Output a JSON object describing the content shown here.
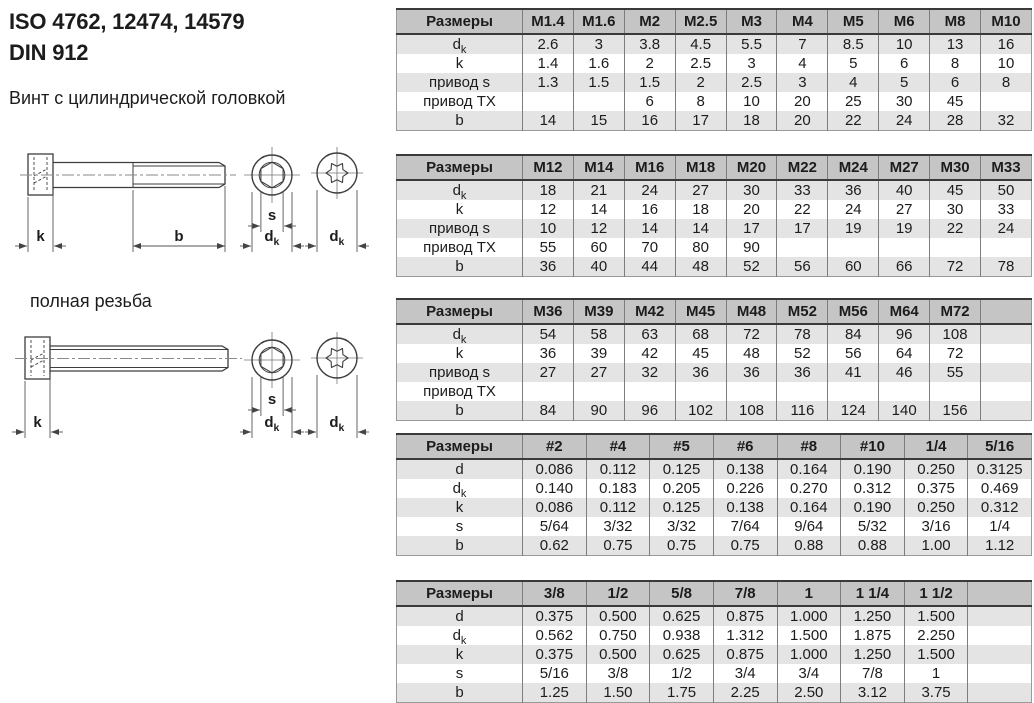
{
  "page": {
    "title_iso": "ISO 4762, 12474, 14579",
    "title_din": "DIN 912",
    "subtitle": "Винт с цилиндрической головкой",
    "full_thread_note": "полная резьба"
  },
  "drawing_labels": {
    "k": "k",
    "b": "b",
    "s": "s",
    "d": "d",
    "dk_sub": "k"
  },
  "colors": {
    "table_header_bg": "#c5c5c5",
    "table_stripe_bg": "#e4e4e4",
    "table_border_dark": "#3a3a3a",
    "table_grid": "#7d7d7d",
    "drawing_line": "#3d3d3d",
    "text": "#1c1c1c"
  },
  "tables": [
    {
      "name": "dimensions-table-m1_4-m10",
      "header": [
        "Размеры",
        "M1.4",
        "M1.6",
        "M2",
        "M2.5",
        "M3",
        "M4",
        "M5",
        "M6",
        "M8",
        "M10"
      ],
      "rows": [
        {
          "label": "d",
          "sub": "k",
          "values": [
            "2.6",
            "3",
            "3.8",
            "4.5",
            "5.5",
            "7",
            "8.5",
            "10",
            "13",
            "16"
          ]
        },
        {
          "label": "k",
          "values": [
            "1.4",
            "1.6",
            "2",
            "2.5",
            "3",
            "4",
            "5",
            "6",
            "8",
            "10"
          ]
        },
        {
          "label": "привод s",
          "values": [
            "1.3",
            "1.5",
            "1.5",
            "2",
            "2.5",
            "3",
            "4",
            "5",
            "6",
            "8"
          ]
        },
        {
          "label": "привод TX",
          "values": [
            "",
            "",
            "6",
            "8",
            "10",
            "20",
            "25",
            "30",
            "45",
            ""
          ]
        },
        {
          "label": "b",
          "values": [
            "14",
            "15",
            "16",
            "17",
            "18",
            "20",
            "22",
            "24",
            "28",
            "32"
          ]
        }
      ]
    },
    {
      "name": "dimensions-table-m12-m33",
      "header": [
        "Размеры",
        "M12",
        "M14",
        "M16",
        "M18",
        "M20",
        "M22",
        "M24",
        "M27",
        "M30",
        "M33"
      ],
      "rows": [
        {
          "label": "d",
          "sub": "k",
          "values": [
            "18",
            "21",
            "24",
            "27",
            "30",
            "33",
            "36",
            "40",
            "45",
            "50"
          ]
        },
        {
          "label": "k",
          "values": [
            "12",
            "14",
            "16",
            "18",
            "20",
            "22",
            "24",
            "27",
            "30",
            "33"
          ]
        },
        {
          "label": "привод s",
          "values": [
            "10",
            "12",
            "14",
            "14",
            "17",
            "17",
            "19",
            "19",
            "22",
            "24"
          ]
        },
        {
          "label": "привод TX",
          "values": [
            "55",
            "60",
            "70",
            "80",
            "90",
            "",
            "",
            "",
            "",
            ""
          ]
        },
        {
          "label": "b",
          "values": [
            "36",
            "40",
            "44",
            "48",
            "52",
            "56",
            "60",
            "66",
            "72",
            "78"
          ]
        }
      ]
    },
    {
      "name": "dimensions-table-m36-m72",
      "header": [
        "Размеры",
        "M36",
        "M39",
        "M42",
        "M45",
        "M48",
        "M52",
        "M56",
        "M64",
        "M72",
        ""
      ],
      "rows": [
        {
          "label": "d",
          "sub": "k",
          "values": [
            "54",
            "58",
            "63",
            "68",
            "72",
            "78",
            "84",
            "96",
            "108",
            ""
          ]
        },
        {
          "label": "k",
          "values": [
            "36",
            "39",
            "42",
            "45",
            "48",
            "52",
            "56",
            "64",
            "72",
            ""
          ]
        },
        {
          "label": "привод s",
          "values": [
            "27",
            "27",
            "32",
            "36",
            "36",
            "36",
            "41",
            "46",
            "55",
            ""
          ]
        },
        {
          "label": "привод TX",
          "values": [
            "",
            "",
            "",
            "",
            "",
            "",
            "",
            "",
            "",
            ""
          ]
        },
        {
          "label": "b",
          "values": [
            "84",
            "90",
            "96",
            "102",
            "108",
            "116",
            "124",
            "140",
            "156",
            ""
          ]
        }
      ]
    },
    {
      "name": "dimensions-table-number-sizes",
      "header": [
        "Размеры",
        "#2",
        "#4",
        "#5",
        "#6",
        "#8",
        "#10",
        "1/4",
        "5/16"
      ],
      "rows": [
        {
          "label": "d",
          "values": [
            "0.086",
            "0.112",
            "0.125",
            "0.138",
            "0.164",
            "0.190",
            "0.250",
            "0.3125"
          ]
        },
        {
          "label": "d",
          "sub": "k",
          "values": [
            "0.140",
            "0.183",
            "0.205",
            "0.226",
            "0.270",
            "0.312",
            "0.375",
            "0.469"
          ]
        },
        {
          "label": "k",
          "values": [
            "0.086",
            "0.112",
            "0.125",
            "0.138",
            "0.164",
            "0.190",
            "0.250",
            "0.312"
          ]
        },
        {
          "label": "s",
          "values": [
            "5/64",
            "3/32",
            "3/32",
            "7/64",
            "9/64",
            "5/32",
            "3/16",
            "1/4"
          ]
        },
        {
          "label": "b",
          "values": [
            "0.62",
            "0.75",
            "0.75",
            "0.75",
            "0.88",
            "0.88",
            "1.00",
            "1.12"
          ]
        }
      ]
    },
    {
      "name": "dimensions-table-fraction-sizes",
      "header": [
        "Размеры",
        "3/8",
        "1/2",
        "5/8",
        "7/8",
        "1",
        "1 1/4",
        "1 1/2",
        ""
      ],
      "rows": [
        {
          "label": "d",
          "values": [
            "0.375",
            "0.500",
            "0.625",
            "0.875",
            "1.000",
            "1.250",
            "1.500",
            ""
          ]
        },
        {
          "label": "d",
          "sub": "k",
          "values": [
            "0.562",
            "0.750",
            "0.938",
            "1.312",
            "1.500",
            "1.875",
            "2.250",
            ""
          ]
        },
        {
          "label": "k",
          "values": [
            "0.375",
            "0.500",
            "0.625",
            "0.875",
            "1.000",
            "1.250",
            "1.500",
            ""
          ]
        },
        {
          "label": "s",
          "values": [
            "5/16",
            "3/8",
            "1/2",
            "3/4",
            "3/4",
            "7/8",
            "1",
            ""
          ]
        },
        {
          "label": "b",
          "values": [
            "1.25",
            "1.50",
            "1.75",
            "2.25",
            "2.50",
            "3.12",
            "3.75",
            ""
          ]
        }
      ]
    }
  ]
}
